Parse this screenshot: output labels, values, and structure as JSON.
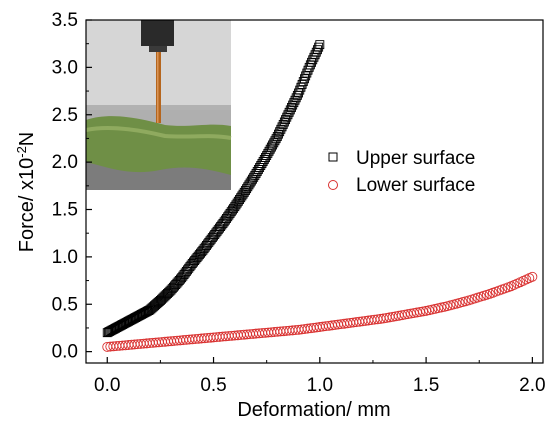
{
  "chart_data": {
    "type": "scatter",
    "xlabel": "Deformation/ mm",
    "ylabel": "Force/ x10",
    "ylabel_superscript": "-2",
    "ylabel_unit": "N",
    "xlim": [
      -0.1,
      2.05
    ],
    "ylim": [
      -0.12,
      3.5
    ],
    "xticks": [
      "0.0",
      "0.5",
      "1.0",
      "1.5",
      "2.0"
    ],
    "xtick_values": [
      0,
      0.5,
      1.0,
      1.5,
      2.0
    ],
    "yticks": [
      "0.0",
      "0.5",
      "1.0",
      "1.5",
      "2.0",
      "2.5",
      "3.0",
      "3.5"
    ],
    "ytick_values": [
      0,
      0.5,
      1.0,
      1.5,
      2.0,
      2.5,
      3.0,
      3.5
    ],
    "legend_position": "right",
    "inset": "photo of a probe pressing on a green specimen (top-left)",
    "series": [
      {
        "name": "Upper surface",
        "marker": "square-open",
        "color": "#000000",
        "x": [
          0.0,
          0.05,
          0.1,
          0.15,
          0.2,
          0.25,
          0.3,
          0.35,
          0.4,
          0.45,
          0.5,
          0.55,
          0.6,
          0.65,
          0.7,
          0.75,
          0.8,
          0.85,
          0.9,
          0.95,
          1.0
        ],
        "y": [
          0.2,
          0.26,
          0.32,
          0.38,
          0.44,
          0.54,
          0.65,
          0.78,
          0.93,
          1.07,
          1.22,
          1.37,
          1.53,
          1.7,
          1.88,
          2.07,
          2.27,
          2.5,
          2.73,
          3.0,
          3.24
        ]
      },
      {
        "name": "Lower surface",
        "marker": "circle-open",
        "color": "#d9302f",
        "x": [
          0.0,
          0.1,
          0.2,
          0.3,
          0.4,
          0.5,
          0.6,
          0.7,
          0.8,
          0.9,
          1.0,
          1.1,
          1.2,
          1.3,
          1.4,
          1.5,
          1.6,
          1.7,
          1.8,
          1.9,
          2.0
        ],
        "y": [
          0.05,
          0.07,
          0.09,
          0.11,
          0.13,
          0.15,
          0.17,
          0.19,
          0.21,
          0.23,
          0.26,
          0.29,
          0.32,
          0.35,
          0.39,
          0.43,
          0.48,
          0.54,
          0.61,
          0.69,
          0.79
        ]
      }
    ]
  },
  "colors": {
    "axis": "#000000",
    "upper": "#000000",
    "lower": "#d9302f",
    "specimen": "#6f8f46"
  }
}
